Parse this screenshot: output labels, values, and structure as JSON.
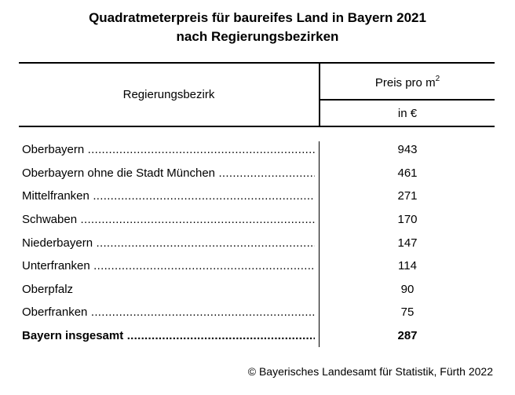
{
  "title": {
    "line1": "Quadratmeterpreis für baureifes Land in Bayern 2021",
    "line2": "nach Regierungsbezirken"
  },
  "table": {
    "header": {
      "region_label": "Regierungsbezirk",
      "price_label": "Preis pro m",
      "price_superscript": "2",
      "unit_label": "in €"
    },
    "rows": [
      {
        "label": "Oberbayern",
        "value": "943"
      },
      {
        "label": "Oberbayern ohne die Stadt München",
        "value": "461"
      },
      {
        "label": "Mittelfranken",
        "value": "271"
      },
      {
        "label": "Schwaben",
        "value": "170"
      },
      {
        "label": "Niederbayern",
        "value": "147"
      },
      {
        "label": "Unterfranken",
        "value": "114"
      },
      {
        "label": "Oberpfalz",
        "value": "90"
      },
      {
        "label": "Oberfranken",
        "value": "75"
      },
      {
        "label": "Bayern insgesamt",
        "value": "287"
      }
    ]
  },
  "footer": {
    "source": "© Bayerisches Landesamt für Statistik, Fürth 2022"
  }
}
